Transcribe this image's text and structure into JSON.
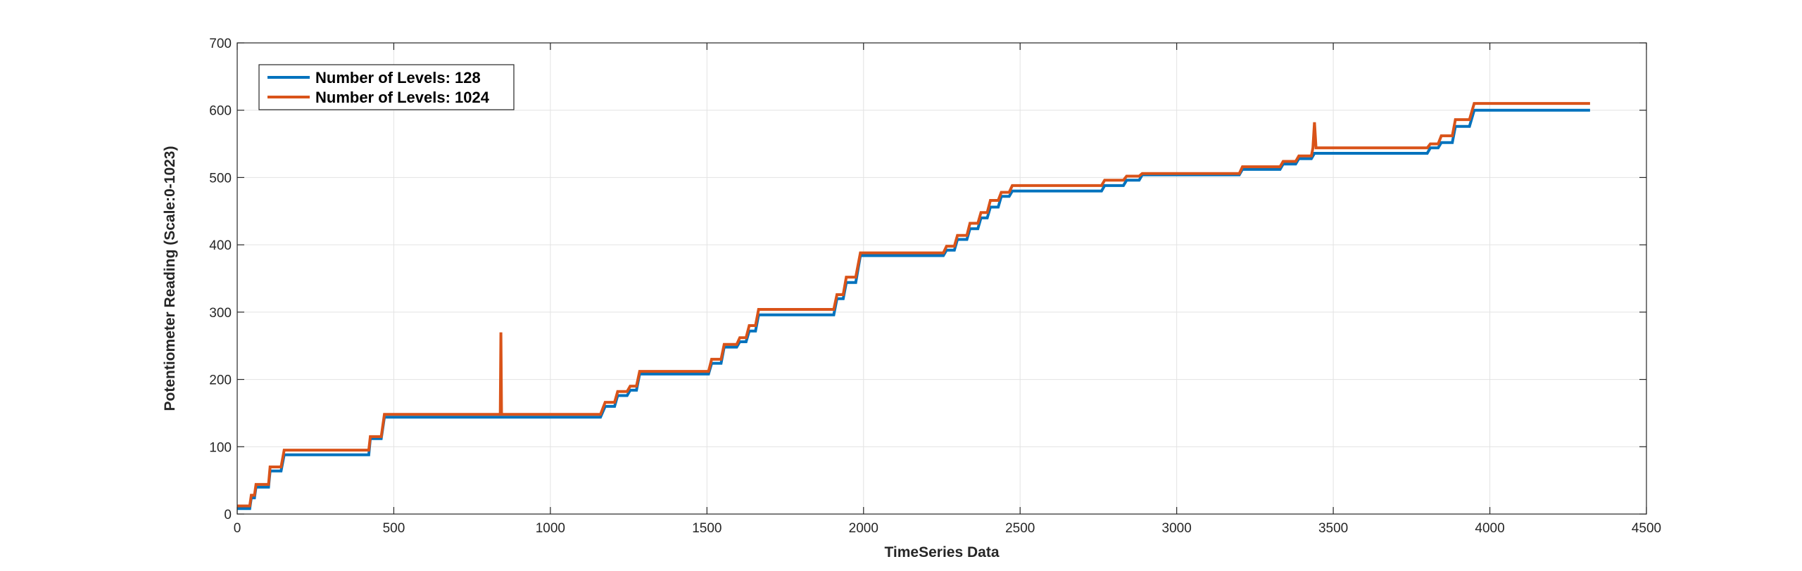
{
  "chart_data": {
    "type": "line",
    "title": "",
    "xlabel": "TimeSeries Data",
    "ylabel": "Potentiometer Reading (Scale:0-1023)",
    "xlim": [
      0,
      4500
    ],
    "ylim": [
      0,
      700
    ],
    "xticks": [
      0,
      500,
      1000,
      1500,
      2000,
      2500,
      3000,
      3500,
      4000,
      4500
    ],
    "yticks": [
      0,
      100,
      200,
      300,
      400,
      500,
      600,
      700
    ],
    "grid": true,
    "legend_position": "top-left",
    "series": [
      {
        "name": "Number of Levels: 128",
        "color": "#0072BD",
        "points": [
          [
            0,
            8
          ],
          [
            40,
            8
          ],
          [
            45,
            24
          ],
          [
            55,
            24
          ],
          [
            60,
            40
          ],
          [
            100,
            40
          ],
          [
            105,
            64
          ],
          [
            140,
            64
          ],
          [
            150,
            88
          ],
          [
            420,
            88
          ],
          [
            425,
            112
          ],
          [
            460,
            112
          ],
          [
            470,
            144
          ],
          [
            1160,
            144
          ],
          [
            1175,
            160
          ],
          [
            1205,
            160
          ],
          [
            1215,
            176
          ],
          [
            1245,
            176
          ],
          [
            1255,
            184
          ],
          [
            1275,
            184
          ],
          [
            1285,
            208
          ],
          [
            1505,
            208
          ],
          [
            1515,
            224
          ],
          [
            1545,
            224
          ],
          [
            1555,
            248
          ],
          [
            1595,
            248
          ],
          [
            1605,
            256
          ],
          [
            1625,
            256
          ],
          [
            1635,
            272
          ],
          [
            1655,
            272
          ],
          [
            1665,
            296
          ],
          [
            1905,
            296
          ],
          [
            1915,
            320
          ],
          [
            1935,
            320
          ],
          [
            1945,
            344
          ],
          [
            1975,
            344
          ],
          [
            1990,
            384
          ],
          [
            2255,
            384
          ],
          [
            2265,
            392
          ],
          [
            2290,
            392
          ],
          [
            2300,
            408
          ],
          [
            2330,
            408
          ],
          [
            2340,
            424
          ],
          [
            2365,
            424
          ],
          [
            2375,
            440
          ],
          [
            2395,
            440
          ],
          [
            2405,
            456
          ],
          [
            2430,
            456
          ],
          [
            2440,
            472
          ],
          [
            2465,
            472
          ],
          [
            2475,
            480
          ],
          [
            2760,
            480
          ],
          [
            2770,
            488
          ],
          [
            2830,
            488
          ],
          [
            2840,
            496
          ],
          [
            2880,
            496
          ],
          [
            2890,
            504
          ],
          [
            3200,
            504
          ],
          [
            3210,
            512
          ],
          [
            3330,
            512
          ],
          [
            3340,
            520
          ],
          [
            3380,
            520
          ],
          [
            3390,
            528
          ],
          [
            3430,
            528
          ],
          [
            3440,
            536
          ],
          [
            3800,
            536
          ],
          [
            3810,
            544
          ],
          [
            3835,
            544
          ],
          [
            3845,
            552
          ],
          [
            3880,
            552
          ],
          [
            3890,
            576
          ],
          [
            3935,
            576
          ],
          [
            3950,
            600
          ],
          [
            4320,
            600
          ]
        ]
      },
      {
        "name": "Number of Levels: 1024",
        "color": "#D95319",
        "points": [
          [
            0,
            12
          ],
          [
            40,
            12
          ],
          [
            45,
            28
          ],
          [
            55,
            28
          ],
          [
            60,
            44
          ],
          [
            100,
            44
          ],
          [
            105,
            70
          ],
          [
            140,
            70
          ],
          [
            150,
            95
          ],
          [
            420,
            95
          ],
          [
            425,
            115
          ],
          [
            460,
            115
          ],
          [
            470,
            148
          ],
          [
            840,
            148
          ],
          [
            842,
            270
          ],
          [
            844,
            148
          ],
          [
            1160,
            148
          ],
          [
            1175,
            166
          ],
          [
            1205,
            166
          ],
          [
            1215,
            182
          ],
          [
            1245,
            182
          ],
          [
            1255,
            190
          ],
          [
            1275,
            190
          ],
          [
            1285,
            212
          ],
          [
            1505,
            212
          ],
          [
            1515,
            230
          ],
          [
            1545,
            230
          ],
          [
            1555,
            252
          ],
          [
            1595,
            252
          ],
          [
            1605,
            262
          ],
          [
            1625,
            262
          ],
          [
            1635,
            280
          ],
          [
            1655,
            280
          ],
          [
            1665,
            304
          ],
          [
            1905,
            304
          ],
          [
            1915,
            326
          ],
          [
            1935,
            326
          ],
          [
            1945,
            352
          ],
          [
            1975,
            352
          ],
          [
            1990,
            388
          ],
          [
            2255,
            388
          ],
          [
            2265,
            398
          ],
          [
            2290,
            398
          ],
          [
            2300,
            414
          ],
          [
            2330,
            414
          ],
          [
            2340,
            432
          ],
          [
            2365,
            432
          ],
          [
            2375,
            448
          ],
          [
            2395,
            448
          ],
          [
            2405,
            466
          ],
          [
            2430,
            466
          ],
          [
            2440,
            478
          ],
          [
            2465,
            478
          ],
          [
            2475,
            488
          ],
          [
            2760,
            488
          ],
          [
            2770,
            496
          ],
          [
            2830,
            496
          ],
          [
            2840,
            502
          ],
          [
            2880,
            502
          ],
          [
            2890,
            506
          ],
          [
            3200,
            506
          ],
          [
            3210,
            516
          ],
          [
            3330,
            516
          ],
          [
            3340,
            524
          ],
          [
            3380,
            524
          ],
          [
            3390,
            532
          ],
          [
            3430,
            532
          ],
          [
            3435,
            544
          ],
          [
            3440,
            582
          ],
          [
            3445,
            544
          ],
          [
            3800,
            544
          ],
          [
            3810,
            550
          ],
          [
            3835,
            550
          ],
          [
            3845,
            562
          ],
          [
            3880,
            562
          ],
          [
            3890,
            586
          ],
          [
            3935,
            586
          ],
          [
            3950,
            610
          ],
          [
            4320,
            610
          ]
        ]
      }
    ]
  }
}
